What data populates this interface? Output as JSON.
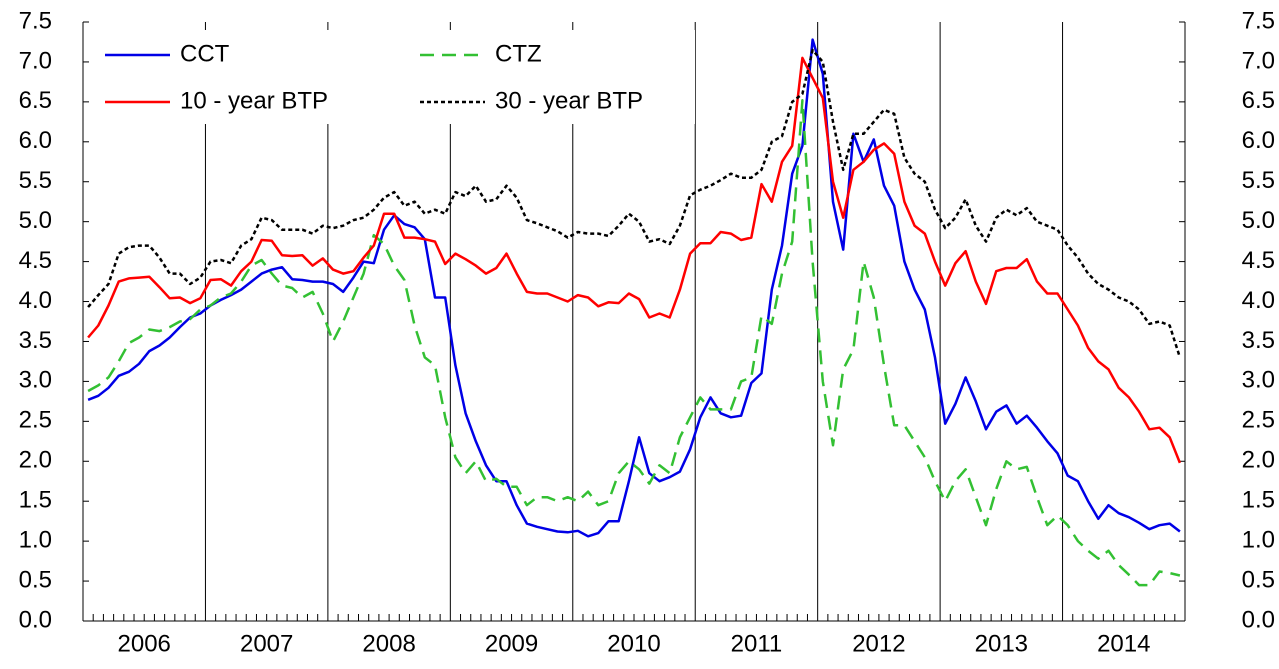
{
  "chart_data": {
    "type": "line",
    "categories": [
      "2006",
      null,
      null,
      null,
      null,
      null,
      null,
      null,
      null,
      null,
      null,
      null,
      "2007",
      null,
      null,
      null,
      null,
      null,
      null,
      null,
      null,
      null,
      null,
      null,
      "2008",
      null,
      null,
      null,
      null,
      null,
      null,
      null,
      null,
      null,
      null,
      null,
      "2009",
      null,
      null,
      null,
      null,
      null,
      null,
      null,
      null,
      null,
      null,
      null,
      "2010",
      null,
      null,
      null,
      null,
      null,
      null,
      null,
      null,
      null,
      null,
      null,
      "2011",
      null,
      null,
      null,
      null,
      null,
      null,
      null,
      null,
      null,
      null,
      null,
      "2012",
      null,
      null,
      null,
      null,
      null,
      null,
      null,
      null,
      null,
      null,
      null,
      "2013",
      null,
      null,
      null,
      null,
      null,
      null,
      null,
      null,
      null,
      null,
      null,
      "2014",
      null,
      null,
      null,
      null,
      null,
      null,
      null,
      null,
      null,
      null,
      null
    ],
    "series": [
      {
        "name": "CCT",
        "color": "#0000e6",
        "style": "solid",
        "values": [
          2.77,
          2.82,
          2.92,
          3.07,
          3.12,
          3.22,
          3.38,
          3.45,
          3.55,
          3.68,
          3.8,
          3.85,
          3.95,
          4.02,
          4.08,
          4.15,
          4.25,
          4.35,
          4.4,
          4.43,
          4.28,
          4.27,
          4.25,
          4.25,
          4.22,
          4.12,
          4.3,
          4.5,
          4.48,
          4.9,
          5.08,
          4.97,
          4.93,
          4.78,
          4.05,
          4.05,
          3.2,
          2.6,
          2.25,
          1.95,
          1.75,
          1.75,
          1.45,
          1.22,
          1.18,
          1.15,
          1.12,
          1.11,
          1.13,
          1.06,
          1.1,
          1.25,
          1.25,
          1.75,
          2.3,
          1.85,
          1.75,
          1.8,
          1.87,
          2.15,
          2.55,
          2.8,
          2.6,
          2.55,
          2.57,
          2.98,
          3.1,
          4.15,
          4.7,
          5.6,
          5.95,
          7.28,
          6.85,
          5.25,
          4.65,
          6.1,
          5.75,
          6.03,
          5.45,
          5.2,
          4.5,
          4.15,
          3.9,
          3.3,
          2.47,
          2.72,
          3.05,
          2.75,
          2.4,
          2.62,
          2.7,
          2.47,
          2.57,
          2.42,
          2.25,
          2.1,
          1.82,
          1.75,
          1.5,
          1.28,
          1.45,
          1.35,
          1.3,
          1.23,
          1.15,
          1.2,
          1.22,
          1.12
        ]
      },
      {
        "name": "CTZ",
        "color": "#33c033",
        "style": "dashed",
        "values": [
          2.88,
          2.95,
          3.05,
          3.25,
          3.48,
          3.55,
          3.65,
          3.63,
          3.68,
          3.75,
          3.78,
          3.9,
          3.95,
          4.05,
          4.1,
          4.25,
          4.45,
          4.52,
          4.35,
          4.2,
          4.17,
          4.05,
          4.12,
          3.85,
          3.5,
          3.75,
          4.05,
          4.35,
          4.83,
          4.72,
          4.45,
          4.27,
          3.7,
          3.3,
          3.2,
          2.55,
          2.05,
          1.85,
          2.0,
          1.75,
          1.78,
          1.68,
          1.68,
          1.45,
          1.55,
          1.55,
          1.5,
          1.55,
          1.5,
          1.62,
          1.45,
          1.5,
          1.85,
          2.0,
          1.9,
          1.72,
          1.95,
          1.85,
          2.3,
          2.55,
          2.8,
          2.65,
          2.65,
          2.65,
          3.0,
          3.05,
          3.82,
          3.72,
          4.35,
          4.75,
          6.52,
          4.5,
          3.0,
          2.2,
          3.15,
          3.4,
          4.5,
          4.05,
          3.2,
          2.45,
          2.45,
          2.25,
          2.05,
          1.75,
          1.5,
          1.75,
          1.9,
          1.55,
          1.2,
          1.65,
          2.0,
          1.9,
          1.93,
          1.55,
          1.2,
          1.32,
          1.2,
          1.0,
          0.88,
          0.78,
          0.88,
          0.7,
          0.58,
          0.45,
          0.45,
          0.62,
          0.6,
          0.57
        ]
      },
      {
        "name": "10 - year BTP",
        "color": "#ff0000",
        "style": "solid",
        "values": [
          3.55,
          3.7,
          3.95,
          4.25,
          4.29,
          4.3,
          4.31,
          4.18,
          4.04,
          4.05,
          3.98,
          4.04,
          4.27,
          4.28,
          4.2,
          4.38,
          4.5,
          4.77,
          4.76,
          4.58,
          4.57,
          4.58,
          4.45,
          4.54,
          4.4,
          4.35,
          4.38,
          4.55,
          4.7,
          5.1,
          5.1,
          4.8,
          4.8,
          4.78,
          4.75,
          4.47,
          4.6,
          4.53,
          4.45,
          4.35,
          4.42,
          4.6,
          4.35,
          4.12,
          4.1,
          4.1,
          4.05,
          4.0,
          4.08,
          4.05,
          3.94,
          3.99,
          3.98,
          4.1,
          4.03,
          3.8,
          3.85,
          3.8,
          4.15,
          4.6,
          4.73,
          4.73,
          4.87,
          4.85,
          4.77,
          4.8,
          5.47,
          5.25,
          5.75,
          5.95,
          7.05,
          6.8,
          6.55,
          5.5,
          5.05,
          5.65,
          5.75,
          5.9,
          5.98,
          5.85,
          5.25,
          4.95,
          4.85,
          4.5,
          4.2,
          4.48,
          4.63,
          4.25,
          3.97,
          4.38,
          4.42,
          4.42,
          4.53,
          4.25,
          4.1,
          4.1,
          3.9,
          3.7,
          3.42,
          3.25,
          3.15,
          2.92,
          2.8,
          2.62,
          2.4,
          2.42,
          2.3,
          1.98
        ]
      },
      {
        "name": "30 - year BTP",
        "color": "#000000",
        "style": "dotted",
        "values": [
          3.93,
          4.08,
          4.22,
          4.6,
          4.68,
          4.7,
          4.7,
          4.55,
          4.35,
          4.35,
          4.22,
          4.3,
          4.5,
          4.52,
          4.48,
          4.7,
          4.78,
          5.05,
          5.02,
          4.9,
          4.9,
          4.9,
          4.85,
          4.95,
          4.92,
          4.95,
          5.02,
          5.05,
          5.15,
          5.3,
          5.37,
          5.2,
          5.25,
          5.1,
          5.15,
          5.1,
          5.37,
          5.32,
          5.45,
          5.25,
          5.28,
          5.45,
          5.3,
          5.02,
          4.98,
          4.93,
          4.88,
          4.8,
          4.87,
          4.85,
          4.85,
          4.82,
          4.95,
          5.1,
          5.0,
          4.75,
          4.78,
          4.72,
          4.95,
          5.33,
          5.4,
          5.45,
          5.52,
          5.6,
          5.55,
          5.55,
          5.65,
          6.0,
          6.07,
          6.5,
          6.6,
          7.15,
          7.0,
          6.25,
          5.65,
          6.1,
          6.1,
          6.25,
          6.4,
          6.35,
          5.8,
          5.6,
          5.5,
          5.15,
          4.92,
          5.05,
          5.28,
          4.95,
          4.75,
          5.05,
          5.15,
          5.08,
          5.17,
          5.0,
          4.95,
          4.9,
          4.7,
          4.55,
          4.35,
          4.22,
          4.15,
          4.05,
          4.0,
          3.9,
          3.72,
          3.75,
          3.7,
          3.3
        ]
      }
    ],
    "ylim": [
      0,
      7.5
    ],
    "yticks": [
      {
        "value": 0,
        "label": "0.0"
      },
      0.5,
      {
        "value": 1,
        "label": "1.0"
      },
      1.5,
      {
        "value": 2,
        "label": "2.0"
      },
      2.5,
      {
        "value": 3,
        "label": "3.0"
      },
      3.5,
      {
        "value": 4,
        "label": "4.0"
      },
      4.5,
      {
        "value": 5,
        "label": "5.0"
      },
      5.5,
      {
        "value": 6,
        "label": "6.0"
      },
      6.5,
      {
        "value": 7,
        "label": "7.0"
      },
      7.5
    ],
    "right_axis": true,
    "legend": "upper left"
  }
}
